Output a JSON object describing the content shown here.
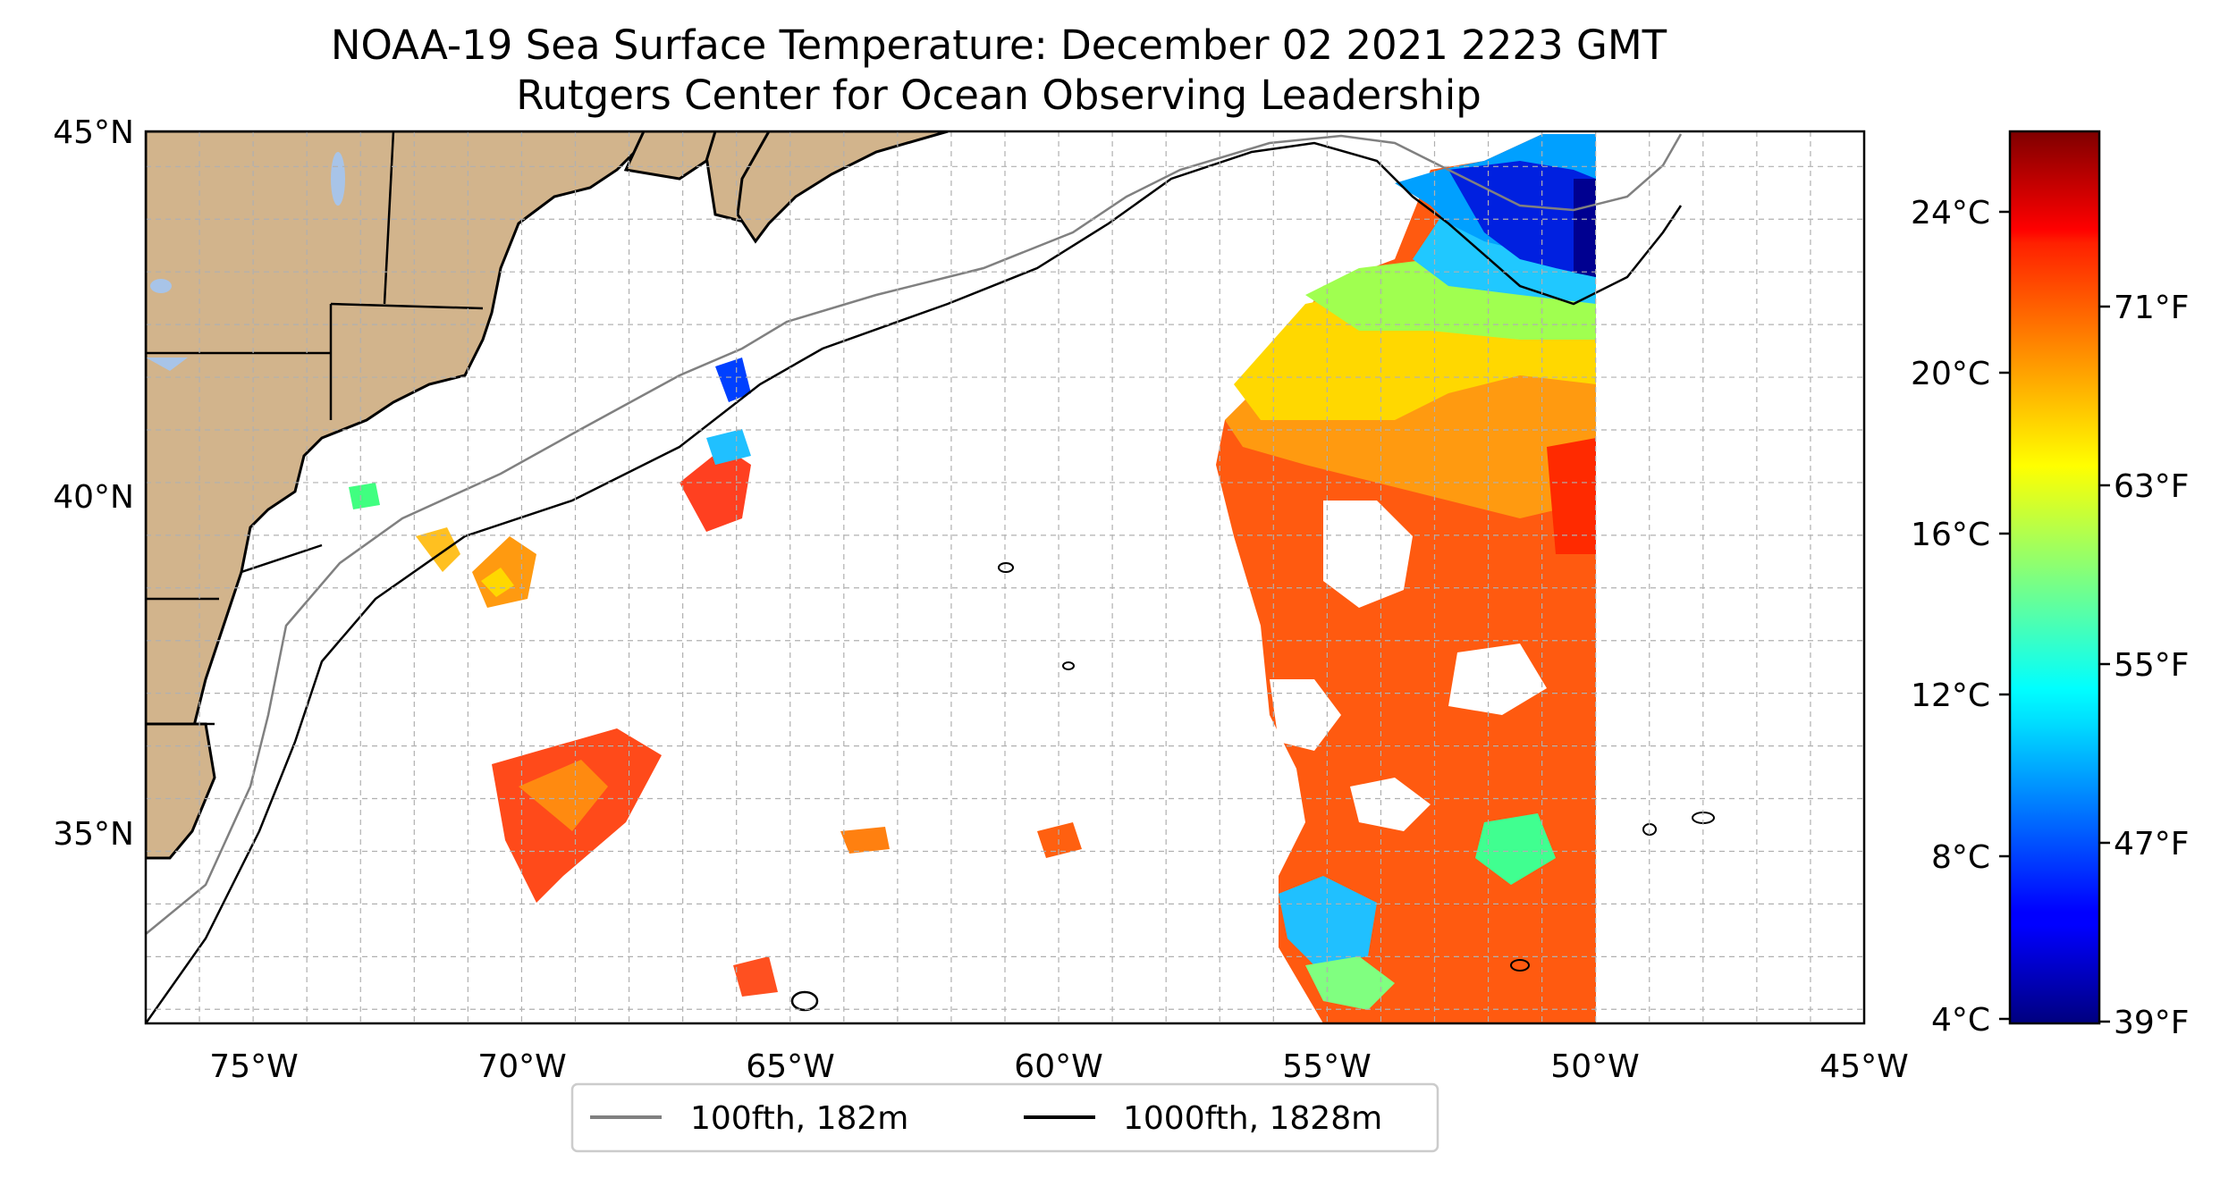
{
  "map": {
    "title": "NOAA-19 Sea Surface Temperature: December 02 2021 2223 GMT",
    "subtitle": "Rutgers Center for Ocean Observing Leadership",
    "lon_range": [
      -77,
      -45
    ],
    "lat_range": [
      32.3,
      45
    ],
    "lon_ticks": [
      "75°W",
      "70°W",
      "65°W",
      "60°W",
      "55°W",
      "50°W",
      "45°W"
    ],
    "lat_ticks": [
      "45°N",
      "40°N",
      "35°N"
    ],
    "gridlines": true,
    "colors": {
      "land": "#d2b48c",
      "lakes": "#a8c4e8",
      "isobath_100": "#808080",
      "isobath_1000": "#000000",
      "grid": "#b0b0b0"
    }
  },
  "legend": {
    "items": [
      {
        "label": "100fth, 182m",
        "color": "#808080"
      },
      {
        "label": "1000fth, 1828m",
        "color": "#000000"
      }
    ],
    "placement": "bottom-center"
  },
  "colorbar": {
    "colormap": "jet",
    "celsius_ticks": [
      "24°C",
      "20°C",
      "16°C",
      "12°C",
      "8°C",
      "4°C"
    ],
    "fahrenheit_ticks": [
      "71°F",
      "63°F",
      "55°F",
      "47°F",
      "39°F"
    ],
    "range_celsius": [
      3.9,
      26
    ]
  }
}
